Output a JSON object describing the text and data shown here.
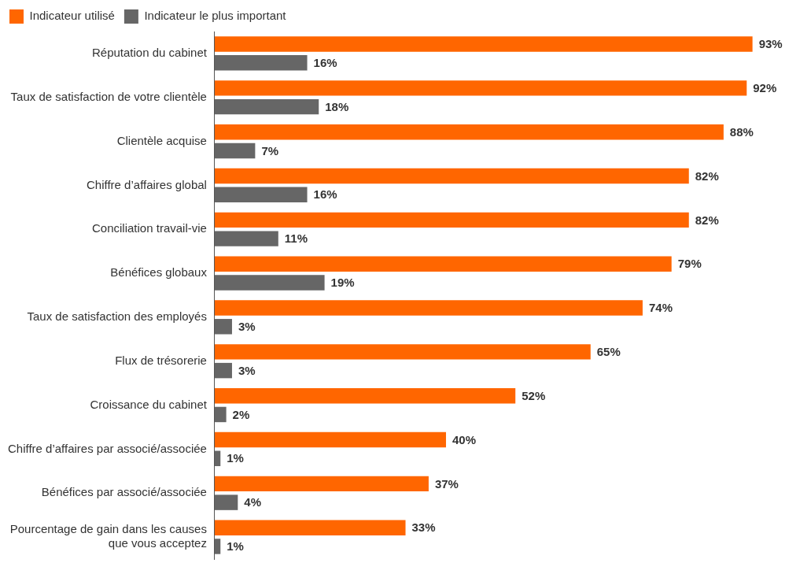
{
  "chart_data": {
    "type": "bar",
    "orientation": "horizontal",
    "legend": "top left",
    "grid": false,
    "categories": [
      "Réputation du cabinet",
      "Taux de satisfaction de votre clientèle",
      "Clientèle acquise",
      "Chiffre d’affaires global",
      "Conciliation travail-vie",
      "Bénéfices globaux",
      "Taux de satisfaction des employés",
      "Flux de trésorerie",
      "Croissance du cabinet",
      "Chiffre d’affaires par associé/associée",
      "Bénéfices par associé/associée",
      "Pourcentage de gain dans les causes que vous acceptez"
    ],
    "series": [
      {
        "name": "Indicateur utilisé",
        "color": "#ff6600",
        "values": [
          93,
          92,
          88,
          82,
          82,
          79,
          74,
          65,
          52,
          40,
          37,
          33
        ],
        "value_labels": [
          "93%",
          "92%",
          "88%",
          "82%",
          "82%",
          "79%",
          "74%",
          "65%",
          "52%",
          "40%",
          "37%",
          "33%"
        ]
      },
      {
        "name": "Indicateur le plus important",
        "color": "#666666",
        "values": [
          16,
          18,
          7,
          16,
          11,
          19,
          3,
          3,
          2,
          1,
          4,
          1
        ],
        "value_labels": [
          "16%",
          "18%",
          "7%",
          "16%",
          "11%",
          "19%",
          "3%",
          "3%",
          "2%",
          "1%",
          "4%",
          "1%"
        ]
      }
    ]
  }
}
